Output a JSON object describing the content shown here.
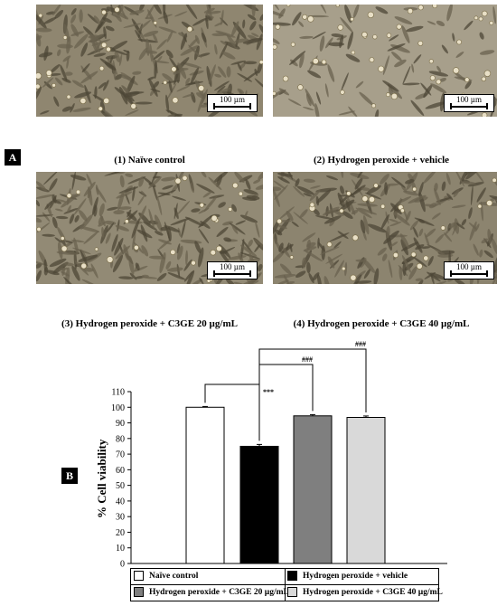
{
  "panel_a": {
    "tag": "A",
    "images": [
      {
        "caption": "(1) Naïve control",
        "scale": "100 µm",
        "tone": "#8f8670"
      },
      {
        "caption": "(2) Hydrogen peroxide + vehicle",
        "scale": "100 µm",
        "tone": "#a79f8b"
      },
      {
        "caption": "(3) Hydrogen peroxide + C3GE 20 µg/mL",
        "scale": "100 µm",
        "tone": "#928a75"
      },
      {
        "caption": "(4) Hydrogen peroxide + C3GE 40 µg/mL",
        "scale": "100 µm",
        "tone": "#8c846f"
      }
    ]
  },
  "panel_b": {
    "tag": "B"
  },
  "chart_data": {
    "type": "bar",
    "categories": [
      "Naïve control",
      "Hydrogen peroxide + vehicle",
      "Hydrogen peroxide + C3GE 20 µg/mL",
      "Hydrogen peroxide + C3GE 40 µg/mL"
    ],
    "values": [
      100,
      75,
      94.5,
      93.5
    ],
    "errors": [
      0.5,
      1.2,
      0.8,
      0.9
    ],
    "colors": [
      "#ffffff",
      "#000000",
      "#7f7f7f",
      "#d9d9d9"
    ],
    "ylabel": "% Cell viability",
    "ylim": [
      0,
      110
    ],
    "yticks": [
      0,
      10,
      20,
      30,
      40,
      50,
      60,
      70,
      80,
      90,
      100,
      110
    ],
    "significance": [
      {
        "from": 0,
        "to": 1,
        "label": "***"
      },
      {
        "from": 1,
        "to": 2,
        "label": "###"
      },
      {
        "from": 1,
        "to": 3,
        "label": "###"
      }
    ],
    "legend_position": "bottom"
  }
}
